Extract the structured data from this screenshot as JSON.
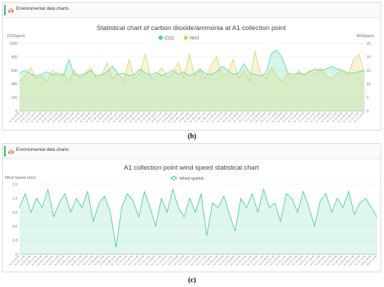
{
  "panels": [
    {
      "header_title": "Environmental data charts",
      "caption": "(b)",
      "icon": "bar-chart-icon"
    },
    {
      "header_title": "Environmental data charts",
      "caption": "(c)",
      "icon": "bar-chart-icon"
    }
  ],
  "colors": {
    "co2": "#3dd6a3",
    "nh3": "#e0cf4f",
    "wind": "#26c98b",
    "accent": "#22b573"
  },
  "chart_data": [
    {
      "type": "line",
      "title": "Statistical chart of carbon dioxide/ammonia at A1 collection point",
      "ylabel_left": "CO2(ppm)",
      "ylabel_right": "NH3(ppm)",
      "legend": [
        "CO2",
        "NH3"
      ],
      "legend_position": "top-center",
      "ylim_left": [
        0,
        1000
      ],
      "ylim_right": [
        0,
        25
      ],
      "yticks_left": [
        0,
        200,
        400,
        600,
        800,
        1000
      ],
      "yticks_right": [
        0,
        5,
        10,
        15,
        20,
        25
      ],
      "grid": true,
      "x": [
        "07-01 00:00",
        "07-01 06:00",
        "07-01 12:00",
        "07-01 18:00",
        "07-02 00:00",
        "07-02 06:00",
        "07-02 12:00",
        "07-02 18:00",
        "07-03 00:00",
        "07-03 06:00",
        "07-03 12:00",
        "07-03 18:00",
        "07-04 00:00",
        "07-04 06:00",
        "07-04 12:00",
        "07-04 18:00",
        "07-05 00:00",
        "07-05 06:00",
        "07-05 12:00",
        "07-05 18:00",
        "07-06 00:00",
        "07-06 06:00",
        "07-06 12:00",
        "07-06 18:00",
        "07-07 00:00",
        "07-07 06:00",
        "07-07 12:00",
        "07-07 18:00",
        "07-08 00:00",
        "07-08 06:00",
        "07-08 12:00",
        "07-08 18:00",
        "07-09 00:00",
        "07-09 06:00",
        "07-09 12:00",
        "07-09 18:00",
        "07-10 00:00",
        "07-10 06:00",
        "07-10 12:00",
        "07-10 18:00",
        "07-11 00:00",
        "07-11 06:00",
        "07-11 12:00",
        "07-11 18:00",
        "07-12 00:00",
        "07-12 06:00",
        "07-12 12:00",
        "07-12 18:00",
        "07-13 00:00",
        "07-13 06:00",
        "07-13 12:00",
        "07-13 18:00",
        "07-14 00:00",
        "07-14 06:00",
        "07-14 12:00",
        "07-14 18:00",
        "07-15 00:00",
        "07-15 06:00",
        "07-15 12:00",
        "07-15 18:00",
        "07-16 00:00",
        "07-16 06:00",
        "07-16 12:00",
        "07-16 18:00"
      ],
      "series": [
        {
          "name": "CO2",
          "axis": "left",
          "values": [
            560,
            600,
            550,
            520,
            540,
            580,
            530,
            560,
            520,
            760,
            540,
            530,
            550,
            600,
            520,
            540,
            580,
            660,
            540,
            560,
            520,
            540,
            620,
            560,
            530,
            570,
            520,
            560,
            600,
            540,
            580,
            520,
            560,
            620,
            550,
            540,
            580,
            660,
            600,
            540,
            560,
            700,
            560,
            540,
            520,
            560,
            850,
            900,
            780,
            560,
            540,
            560,
            540,
            580,
            620,
            600,
            620,
            660,
            620,
            600,
            560,
            560,
            580,
            600
          ]
        },
        {
          "name": "NH3",
          "axis": "right",
          "values": [
            11,
            13,
            16,
            12,
            13,
            11,
            15,
            13,
            14,
            11,
            15,
            12,
            14,
            16,
            12,
            13,
            18,
            12,
            14,
            11,
            19,
            12,
            14,
            21,
            12,
            13,
            16,
            12,
            14,
            18,
            12,
            21,
            13,
            15,
            12,
            17,
            20,
            13,
            14,
            19,
            12,
            15,
            11,
            22,
            14,
            12,
            16,
            13,
            11,
            14,
            12,
            15,
            13,
            15,
            14,
            16,
            13,
            12,
            14,
            15,
            13,
            19,
            21,
            14
          ]
        }
      ]
    },
    {
      "type": "line",
      "title": "A1 collection point wind speed statistical chart",
      "ylabel": "Wind Speed (m/s)",
      "legend": [
        "Wind speed"
      ],
      "legend_position": "top-center",
      "ylim": [
        0,
        1.5
      ],
      "yticks": [
        0,
        0.3,
        0.6,
        0.9,
        1.2,
        1.5
      ],
      "grid": true,
      "x": [
        "07-01 00:00",
        "07-01 12:00",
        "07-02 00:00",
        "07-02 12:00",
        "07-03 00:00",
        "07-03 12:00",
        "07-04 00:00",
        "07-04 12:00",
        "07-05 00:00",
        "07-05 12:00",
        "07-06 00:00",
        "07-06 12:00",
        "07-07 00:00",
        "07-07 12:00",
        "07-08 00:00",
        "07-08 12:00",
        "07-09 00:00",
        "07-09 12:00",
        "07-10 00:00",
        "07-10 12:00",
        "07-11 00:00",
        "07-11 12:00",
        "07-12 00:00",
        "07-12 12:00",
        "07-13 00:00",
        "07-13 12:00",
        "07-14 00:00",
        "07-14 12:00",
        "07-15 00:00",
        "07-15 12:00",
        "07-16 00:00",
        "07-16 12:00",
        "07-17 00:00",
        "07-17 12:00",
        "07-18 00:00",
        "07-18 12:00",
        "07-19 00:00",
        "07-19 12:00",
        "07-20 00:00",
        "07-20 12:00",
        "07-21 00:00",
        "07-21 12:00",
        "07-22 00:00",
        "07-22 12:00",
        "07-23 00:00",
        "07-23 12:00",
        "07-24 00:00",
        "07-24 12:00",
        "07-25 00:00",
        "07-25 12:00",
        "07-26 00:00",
        "07-26 12:00",
        "07-27 00:00",
        "07-27 12:00",
        "07-28 00:00",
        "07-28 12:00",
        "07-29 00:00",
        "07-29 12:00",
        "07-30 00:00",
        "07-30 12:00",
        "07-31 00:00",
        "07-31 12:00",
        "08-01 00:00",
        "08-01 12:00"
      ],
      "series": [
        {
          "name": "Wind speed",
          "values": [
            1.0,
            1.3,
            0.9,
            1.2,
            1.0,
            1.4,
            0.8,
            1.1,
            1.3,
            0.9,
            1.2,
            1.0,
            1.35,
            0.7,
            1.1,
            1.25,
            0.9,
            0.15,
            1.0,
            1.3,
            1.15,
            0.8,
            1.35,
            1.0,
            0.6,
            1.2,
            0.9,
            1.4,
            1.0,
            0.8,
            1.2,
            0.9,
            1.3,
            0.4,
            1.1,
            1.0,
            1.25,
            0.85,
            0.5,
            1.2,
            1.0,
            1.3,
            0.9,
            1.4,
            1.0,
            1.1,
            0.7,
            1.3,
            1.2,
            0.9,
            1.35,
            1.0,
            0.6,
            1.15,
            1.3,
            0.9,
            1.2,
            1.0,
            1.35,
            0.85,
            1.1,
            1.2,
            1.0,
            0.8
          ]
        }
      ]
    }
  ]
}
